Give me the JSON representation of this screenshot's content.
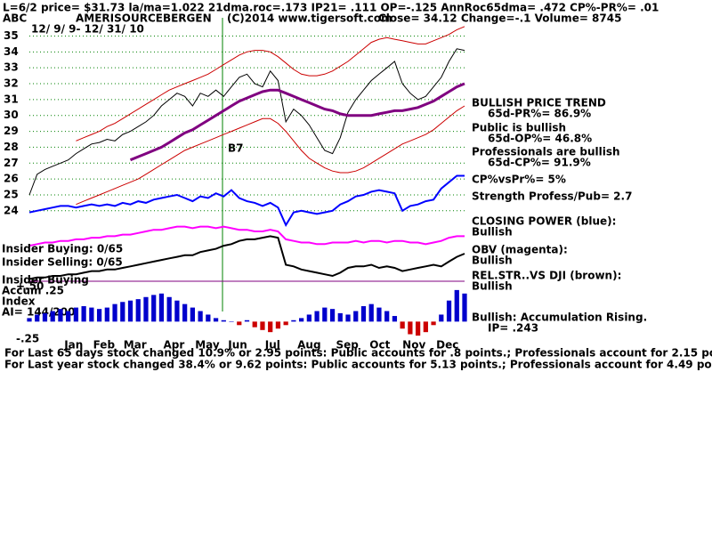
{
  "chart_data": [
    {
      "type": "line",
      "stats": "L=6/2  price= $31.73  la/ma=1.022 21dma.roc=.173 IP21= .111 OP=-.125 AnnRoc65dma= .472 CP%-PR%=  .01",
      "symbol": "ABC",
      "title": "AMERISOURCEBERGEN",
      "subtitle": "(C)2014 www.tigersoft.com",
      "quote": "Close=  34.12  Change=-.1 Volume= 8745",
      "date_range": "12/ 9/ 9- 12/ 31/ 10",
      "signal": "B7",
      "xlim": [
        0,
        56
      ],
      "xticks": [
        {
          "value": 5.7,
          "label": "Jan"
        },
        {
          "value": 9.6,
          "label": "Feb"
        },
        {
          "value": 13.6,
          "label": "Mar"
        },
        {
          "value": 18.6,
          "label": "Apr"
        },
        {
          "value": 22.9,
          "label": "May"
        },
        {
          "value": 26.8,
          "label": "Jun"
        },
        {
          "value": 31.3,
          "label": "Jul"
        },
        {
          "value": 36,
          "label": "Aug"
        },
        {
          "value": 40.9,
          "label": "Sep"
        },
        {
          "value": 45.1,
          "label": "Oct"
        },
        {
          "value": 49.5,
          "label": "Nov"
        },
        {
          "value": 53.8,
          "label": "Dec"
        }
      ],
      "ylim": [
        16.2,
        35.7
      ],
      "yticks": [
        24,
        25,
        26,
        27,
        28,
        29,
        30,
        31,
        32,
        33,
        34,
        35
      ],
      "grid": true,
      "series": [
        {
          "color": "#000000",
          "values": [
            25.0,
            26.3,
            26.6,
            26.8,
            27.0,
            27.2,
            27.6,
            27.9,
            28.2,
            28.3,
            28.5,
            28.4,
            28.8,
            29.0,
            29.3,
            29.6,
            30.0,
            30.6,
            31.0,
            31.4,
            31.2,
            30.6,
            31.4,
            31.2,
            31.6,
            31.2,
            31.8,
            32.4,
            32.6,
            32.0,
            31.8,
            32.8,
            32.2,
            29.6,
            30.4,
            30.0,
            29.4,
            28.6,
            27.8,
            27.6,
            28.6,
            30.2,
            31.0,
            31.6,
            32.2,
            32.6,
            33.0,
            33.4,
            32.0,
            31.4,
            31.0,
            31.2,
            31.8,
            32.4,
            33.4,
            34.2,
            34.1
          ]
        },
        {
          "color": "#cc0000",
          "values": [
            null,
            null,
            null,
            null,
            null,
            null,
            28.4,
            28.6,
            28.8,
            29.0,
            29.3,
            29.5,
            29.8,
            30.1,
            30.4,
            30.7,
            31.0,
            31.3,
            31.6,
            31.8,
            32.0,
            32.2,
            32.4,
            32.6,
            32.9,
            33.2,
            33.5,
            33.8,
            34.0,
            34.1,
            34.1,
            34.0,
            33.7,
            33.3,
            32.9,
            32.6,
            32.5,
            32.5,
            32.6,
            32.8,
            33.1,
            33.4,
            33.8,
            34.2,
            34.6,
            34.8,
            34.9,
            34.8,
            34.7,
            34.6,
            34.5,
            34.5,
            34.7,
            34.9,
            35.1,
            35.4,
            35.6
          ]
        },
        {
          "color": "#cc0000",
          "values": [
            null,
            null,
            null,
            null,
            null,
            null,
            24.4,
            24.6,
            24.8,
            25.0,
            25.2,
            25.4,
            25.6,
            25.8,
            26.0,
            26.3,
            26.6,
            26.9,
            27.2,
            27.5,
            27.8,
            28.0,
            28.2,
            28.4,
            28.6,
            28.8,
            29.0,
            29.2,
            29.4,
            29.6,
            29.8,
            29.8,
            29.5,
            29.0,
            28.4,
            27.8,
            27.3,
            27.0,
            26.7,
            26.5,
            26.4,
            26.4,
            26.5,
            26.7,
            27.0,
            27.3,
            27.6,
            27.9,
            28.2,
            28.4,
            28.6,
            28.8,
            29.1,
            29.5,
            29.9,
            30.3,
            30.6
          ]
        },
        {
          "color": "#800080",
          "values": [
            null,
            null,
            null,
            null,
            null,
            null,
            null,
            null,
            null,
            null,
            null,
            null,
            null,
            27.2,
            27.4,
            27.6,
            27.8,
            28.0,
            28.3,
            28.6,
            28.9,
            29.1,
            29.4,
            29.7,
            30.0,
            30.3,
            30.6,
            30.9,
            31.1,
            31.3,
            31.5,
            31.6,
            31.6,
            31.4,
            31.2,
            31.0,
            30.8,
            30.6,
            30.4,
            30.3,
            30.1,
            30.0,
            30.0,
            30.0,
            30.0,
            30.1,
            30.2,
            30.3,
            30.3,
            30.4,
            30.5,
            30.7,
            30.9,
            31.2,
            31.5,
            31.8,
            32.0
          ]
        },
        {
          "color": "#0000ff",
          "values": [
            23.9,
            24.0,
            24.1,
            24.2,
            24.3,
            24.3,
            24.2,
            24.3,
            24.4,
            24.3,
            24.4,
            24.3,
            24.5,
            24.4,
            24.6,
            24.5,
            24.7,
            24.8,
            24.9,
            25.0,
            24.8,
            24.6,
            24.9,
            24.8,
            25.1,
            24.9,
            25.3,
            24.8,
            24.6,
            24.5,
            24.3,
            24.5,
            24.2,
            23.1,
            23.9,
            24.0,
            23.9,
            23.8,
            23.9,
            24.0,
            24.4,
            24.6,
            24.9,
            25.0,
            25.2,
            25.3,
            25.2,
            25.1,
            24.0,
            24.3,
            24.4,
            24.6,
            24.7,
            25.4,
            25.8,
            26.2,
            26.2
          ]
        },
        {
          "color": "#ff00ff",
          "values": [
            21.8,
            21.9,
            22.0,
            22.0,
            22.1,
            22.1,
            22.2,
            22.2,
            22.3,
            22.3,
            22.4,
            22.4,
            22.5,
            22.5,
            22.6,
            22.7,
            22.8,
            22.8,
            22.9,
            23.0,
            23.0,
            22.9,
            23.0,
            23.0,
            22.9,
            23.0,
            22.9,
            22.8,
            22.8,
            22.7,
            22.7,
            22.8,
            22.7,
            22.2,
            22.1,
            22.0,
            22.0,
            21.9,
            21.9,
            22.0,
            22.0,
            22.0,
            22.1,
            22.0,
            22.1,
            22.1,
            22.0,
            22.1,
            22.1,
            22.0,
            22.0,
            21.9,
            22.0,
            22.1,
            22.3,
            22.4,
            22.4
          ]
        },
        {
          "color": "#000000",
          "values": [
            19.7,
            19.8,
            19.8,
            19.9,
            19.9,
            20.0,
            20.0,
            20.1,
            20.2,
            20.2,
            20.3,
            20.3,
            20.4,
            20.5,
            20.6,
            20.7,
            20.8,
            20.9,
            21.0,
            21.1,
            21.2,
            21.2,
            21.4,
            21.5,
            21.6,
            21.8,
            21.9,
            22.1,
            22.2,
            22.2,
            22.3,
            22.4,
            22.3,
            20.6,
            20.5,
            20.3,
            20.2,
            20.1,
            20.0,
            19.9,
            20.1,
            20.4,
            20.5,
            20.5,
            20.6,
            20.4,
            20.5,
            20.4,
            20.2,
            20.3,
            20.4,
            20.5,
            20.6,
            20.5,
            20.8,
            21.1,
            21.3
          ]
        }
      ],
      "annotations": [
        "BULLISH PRICE TREND",
        "65d-PR%= 86.9%",
        "Public is bullish",
        "65d-OP%= 46.8%",
        "Professionals are bullish",
        "65d-CP%= 91.9%",
        "CP%vsPr%=  5%",
        "Strength Profess/Pub= 2.7",
        "CLOSING POWER (blue):",
        "Bullish",
        "OBV (magenta):",
        "Bullish",
        "REL.STR..VS DJI (brown):",
        "Bullish",
        "Bullish: Accumulation Rising.",
        "IP=  .243"
      ],
      "side_labels": [
        "Insider Buying: 0/65",
        "Insider Selling: 0/65",
        "Insider Buying",
        "Accum .25",
        "Index",
        "AI= 144/200"
      ],
      "footer": [
        "For Last 65 days stock changed  10.9% or  2.95 points:  Public accounts for  .8 points.;  Professionals account for  2.15 points.",
        "For Last year stock changed  38.4% or  9.62 points:  Public accounts for  5.13 points.;  Professionals account for  4.49 points."
      ]
    },
    {
      "type": "bar",
      "ylim": [
        -0.3,
        0.55
      ],
      "yticks": [
        {
          "value": 0.5,
          "label": "+.50"
        },
        {
          "value": -0.25,
          "label": "-.25"
        }
      ],
      "color": "#0000cc",
      "negative_color": "#cc0000",
      "values": [
        0.05,
        0.1,
        0.12,
        0.15,
        0.18,
        0.15,
        0.2,
        0.22,
        0.2,
        0.18,
        0.2,
        0.25,
        0.28,
        0.3,
        0.32,
        0.35,
        0.38,
        0.4,
        0.35,
        0.3,
        0.25,
        0.2,
        0.15,
        0.1,
        0.05,
        0.02,
        0.0,
        -0.05,
        0.02,
        -0.08,
        -0.12,
        -0.15,
        -0.1,
        -0.05,
        0.02,
        0.05,
        0.1,
        0.15,
        0.2,
        0.18,
        0.12,
        0.1,
        0.15,
        0.22,
        0.25,
        0.2,
        0.15,
        0.08,
        -0.1,
        -0.18,
        -0.2,
        -0.15,
        -0.05,
        0.1,
        0.3,
        0.45,
        0.4
      ]
    }
  ]
}
